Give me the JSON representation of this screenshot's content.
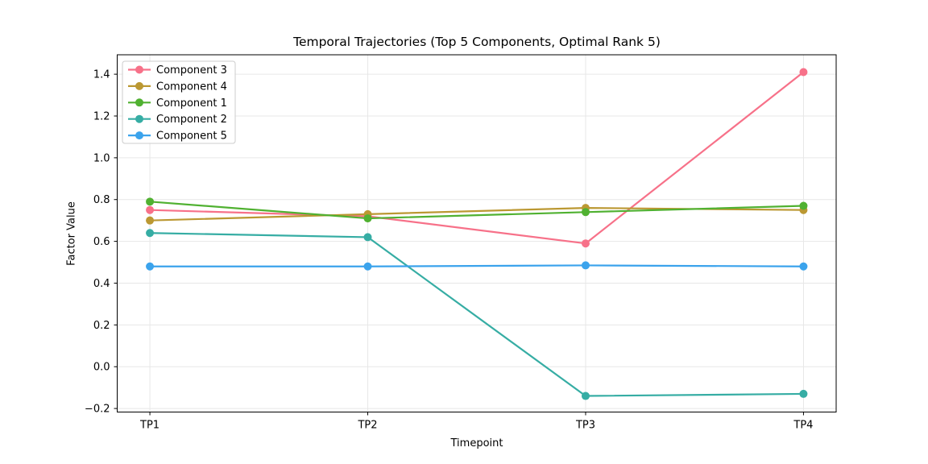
{
  "chart_data": {
    "type": "line",
    "title": "Temporal Trajectories (Top 5 Components, Optimal Rank 5)",
    "xlabel": "Timepoint",
    "ylabel": "Factor Value",
    "categories": [
      "TP1",
      "TP2",
      "TP3",
      "TP4"
    ],
    "series": [
      {
        "name": "Component 3",
        "color": "#f77189",
        "values": [
          0.75,
          0.72,
          0.59,
          1.41
        ]
      },
      {
        "name": "Component 4",
        "color": "#bb9832",
        "values": [
          0.7,
          0.73,
          0.76,
          0.75
        ]
      },
      {
        "name": "Component 1",
        "color": "#50b131",
        "values": [
          0.79,
          0.71,
          0.74,
          0.77
        ]
      },
      {
        "name": "Component 2",
        "color": "#36ada4",
        "values": [
          0.64,
          0.62,
          -0.14,
          -0.13
        ]
      },
      {
        "name": "Component 5",
        "color": "#3ba3ec",
        "values": [
          0.48,
          0.48,
          0.485,
          0.48
        ]
      }
    ],
    "y_ticks": [
      -0.2,
      0.0,
      0.2,
      0.4,
      0.6,
      0.8,
      1.0,
      1.2,
      1.4
    ],
    "ylim": [
      -0.217,
      1.493
    ],
    "grid": true,
    "grid_color": "#e7e7e7",
    "spine_color": "#000000",
    "legend_position": "upper left",
    "legend_border_color": "#cccccc",
    "legend_background": "#ffffff"
  }
}
